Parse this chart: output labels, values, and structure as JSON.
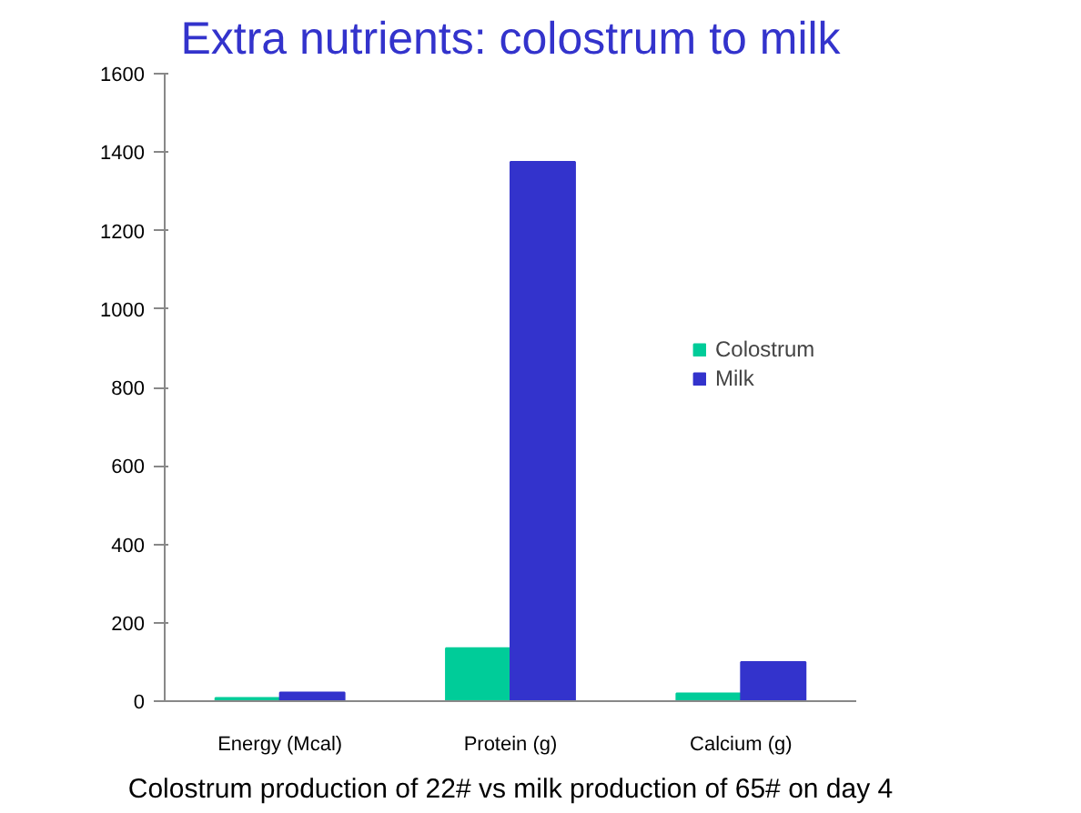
{
  "chart_data": {
    "type": "bar",
    "title": "Extra nutrients: colostrum to milk",
    "categories": [
      "Energy (Mcal)",
      "Protein (g)",
      "Calcium (g)"
    ],
    "series": [
      {
        "name": "Colostrum",
        "color": "#00cc99",
        "values": [
          8,
          135,
          20
        ]
      },
      {
        "name": "Milk",
        "color": "#3333cc",
        "values": [
          22,
          1375,
          100
        ]
      }
    ],
    "ylim": [
      0,
      1600
    ],
    "yticks": [
      0,
      200,
      400,
      600,
      800,
      1000,
      1200,
      1400,
      1600
    ],
    "grid": false,
    "legend": "right",
    "annotations": [
      "Colostrum production of 22# vs milk production of 65# on day 4"
    ]
  }
}
